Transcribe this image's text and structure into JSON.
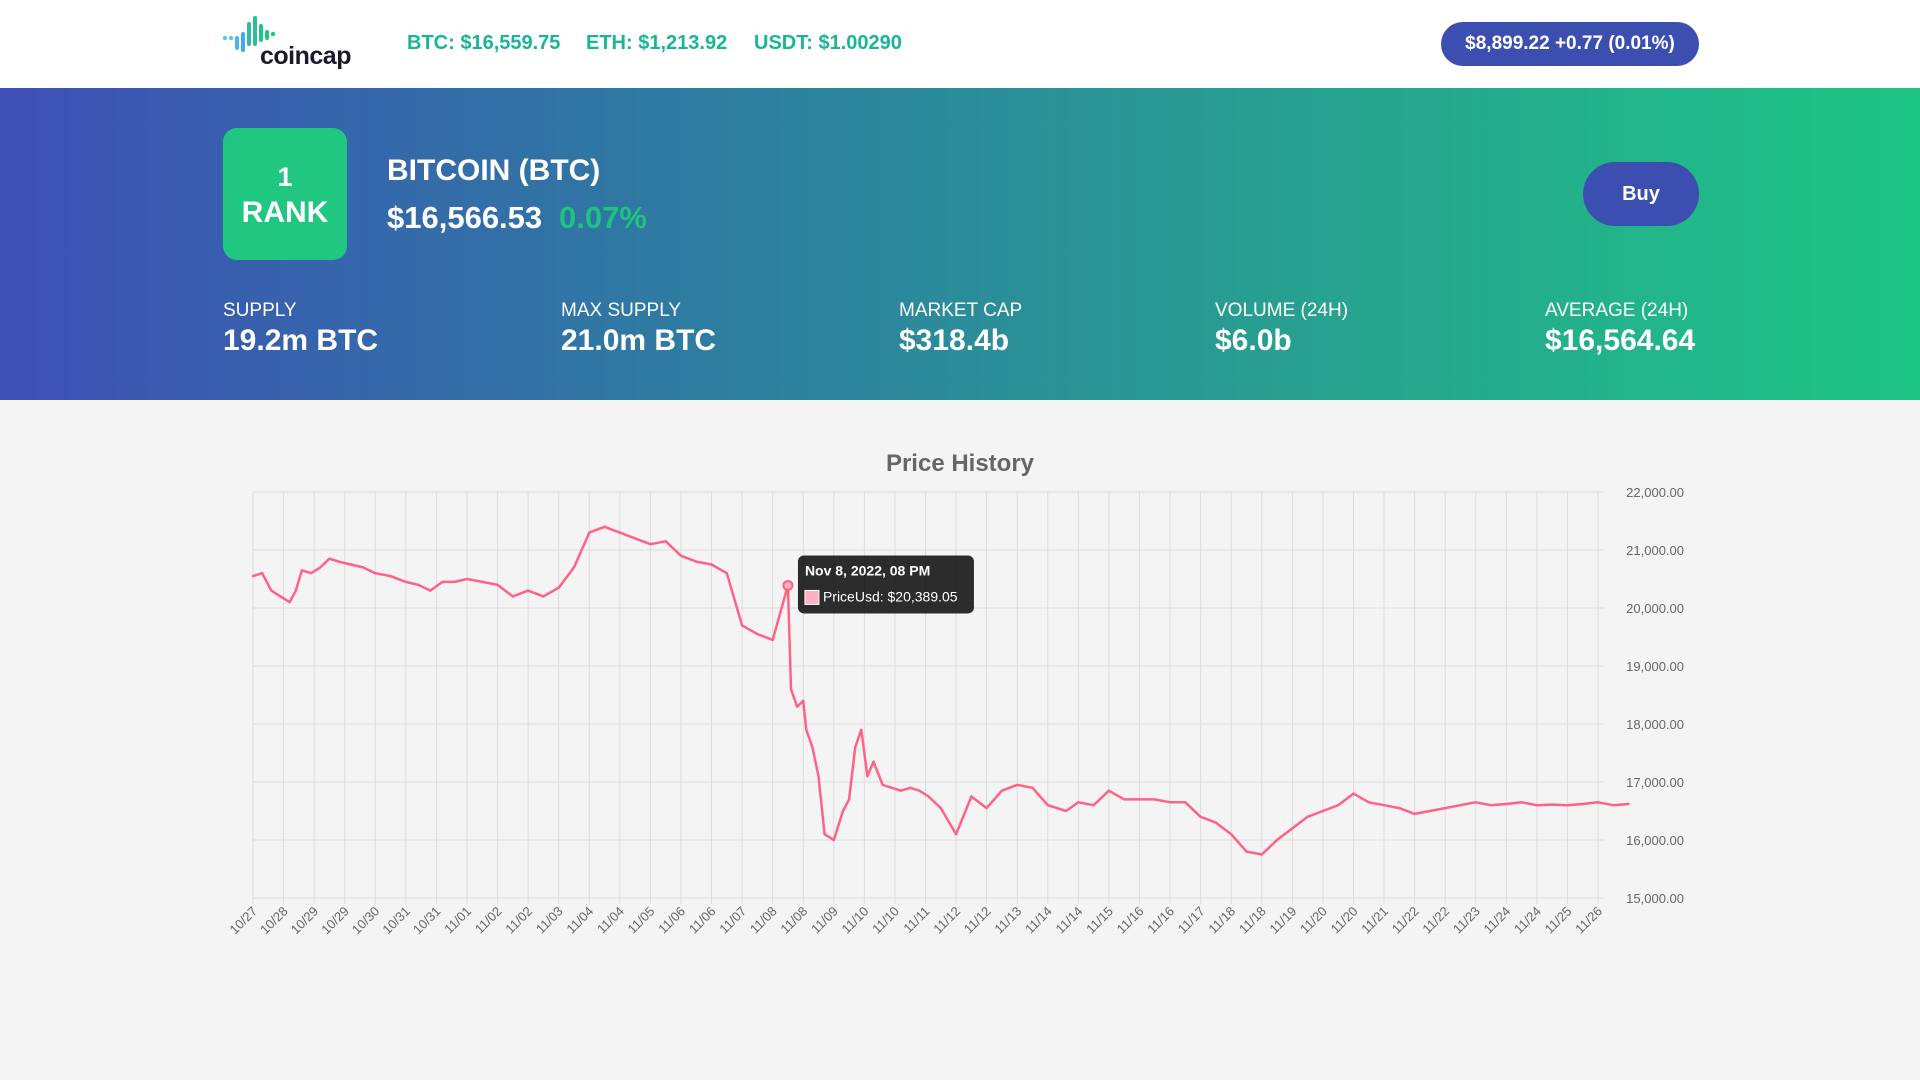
{
  "header": {
    "logo_text": "coincap",
    "tickers": [
      {
        "label": "BTC: $16,559.75"
      },
      {
        "label": "ETH: $1,213.92"
      },
      {
        "label": "USDT: $1.00290"
      }
    ],
    "index_pill": "$8,899.22 +0.77 (0.01%)"
  },
  "asset": {
    "rank_number": "1",
    "rank_label": "RANK",
    "name": "BITCOIN (BTC)",
    "price": "$16,566.53",
    "change": "0.07%",
    "buy_label": "Buy",
    "stats": [
      {
        "label": "SUPPLY",
        "value": "19.2m BTC"
      },
      {
        "label": "MAX SUPPLY",
        "value": "21.0m BTC"
      },
      {
        "label": "MARKET CAP",
        "value": "$318.4b"
      },
      {
        "label": "VOLUME (24H)",
        "value": "$6.0b"
      },
      {
        "label": "AVERAGE (24H)",
        "value": "$16,564.64"
      }
    ]
  },
  "colors": {
    "brand_blue": "#3c4fb1",
    "brand_green": "#1fc781",
    "ticker_green": "#18b597",
    "line_color": "#ff6384"
  },
  "chart_data": {
    "type": "line",
    "title": "Price History",
    "ylim": [
      15000,
      22000
    ],
    "y_ticks": [
      "22,000.00",
      "21,000.00",
      "20,000.00",
      "19,000.00",
      "18,000.00",
      "17,000.00",
      "16,000.00",
      "15,000.00"
    ],
    "x_tick_labels": [
      "10/27",
      "10/28",
      "10/29",
      "10/29",
      "10/30",
      "10/31",
      "10/31",
      "11/01",
      "11/02",
      "11/02",
      "11/03",
      "11/04",
      "11/04",
      "11/05",
      "11/06",
      "11/06",
      "11/07",
      "11/08",
      "11/08",
      "11/09",
      "11/10",
      "11/10",
      "11/11",
      "11/12",
      "11/12",
      "11/13",
      "11/14",
      "11/14",
      "11/15",
      "11/16",
      "11/16",
      "11/17",
      "11/18",
      "11/18",
      "11/19",
      "11/20",
      "11/20",
      "11/21",
      "11/22",
      "11/22",
      "11/23",
      "11/24",
      "11/24",
      "11/25",
      "11/26"
    ],
    "series": [
      {
        "name": "PriceUsd",
        "x": [
          0,
          0.3,
          0.6,
          0.9,
          1.2,
          1.4,
          1.6,
          1.9,
          2.2,
          2.5,
          2.8,
          3.2,
          3.6,
          4.0,
          4.5,
          5.0,
          5.4,
          5.8,
          6.2,
          6.6,
          7.0,
          7.5,
          8.0,
          8.5,
          9.0,
          9.5,
          10.0,
          10.5,
          11.0,
          11.5,
          12.0,
          12.5,
          13.0,
          13.5,
          14.0,
          14.5,
          15.0,
          15.5,
          16.0,
          16.5,
          17.0,
          17.5,
          17.6,
          17.8,
          18.0,
          18.1,
          18.3,
          18.5,
          18.7,
          19.0,
          19.3,
          19.5,
          19.7,
          19.9,
          20.1,
          20.3,
          20.6,
          20.9,
          21.2,
          21.5,
          21.8,
          22.1,
          22.5,
          23.0,
          23.5,
          24.0,
          24.5,
          25.0,
          25.5,
          26.0,
          26.3,
          26.6,
          27.0,
          27.5,
          28.0,
          28.5,
          29.0,
          29.5,
          30.0,
          30.5,
          31.0,
          31.5,
          32.0,
          32.5,
          33.0,
          33.5,
          34.0,
          34.5,
          35.0,
          35.5,
          36.0,
          36.5,
          37.0,
          37.5,
          38.0,
          38.5,
          39.0,
          39.5,
          40.0,
          40.5,
          41.0,
          41.5,
          42.0,
          42.5,
          43.0,
          43.5,
          44.0,
          44.5,
          45.0
        ],
        "values": [
          20550,
          20600,
          20300,
          20200,
          20100,
          20300,
          20650,
          20600,
          20700,
          20850,
          20800,
          20750,
          20700,
          20600,
          20550,
          20450,
          20400,
          20300,
          20450,
          20450,
          20500,
          20450,
          20400,
          20200,
          20300,
          20200,
          20350,
          20700,
          21300,
          21400,
          21300,
          21200,
          21100,
          21150,
          20900,
          20800,
          20750,
          20600,
          19700,
          19550,
          19450,
          20389,
          18600,
          18300,
          18400,
          17900,
          17600,
          17100,
          16100,
          16000,
          16500,
          16700,
          17600,
          17900,
          17100,
          17350,
          16950,
          16900,
          16850,
          16900,
          16850,
          16750,
          16550,
          16100,
          16750,
          16550,
          16850,
          16950,
          16900,
          16600,
          16550,
          16500,
          16650,
          16600,
          16850,
          16700,
          16700,
          16700,
          16650,
          16650,
          16400,
          16300,
          16100,
          15800,
          15750,
          16000,
          16200,
          16400,
          16500,
          16600,
          16800,
          16650,
          16600,
          16550,
          16450,
          16500,
          16550,
          16600,
          16650,
          16600,
          16620,
          16650,
          16600,
          16610,
          16600,
          16620,
          16650,
          16600,
          16620
        ]
      }
    ],
    "tooltip": {
      "title": "Nov 8, 2022, 08 PM",
      "label": "PriceUsd: $20,389.05",
      "point_index": 41
    }
  }
}
